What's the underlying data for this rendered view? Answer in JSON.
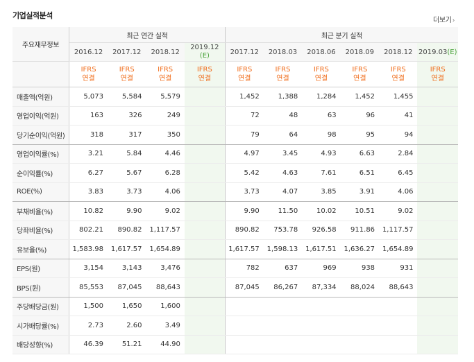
{
  "section_title": "기업실적분석",
  "more_link": "더보기",
  "header": {
    "row_label": "주요재무정보",
    "annual_group": "최근 연간 실적",
    "quarter_group": "최근 분기 실적",
    "annual_periods": [
      "2016.12",
      "2017.12",
      "2018.12"
    ],
    "annual_estimate": {
      "date": "2019.12",
      "tag": "(E)"
    },
    "quarter_periods": [
      "2017.12",
      "2018.03",
      "2018.06",
      "2018.09",
      "2018.12"
    ],
    "quarter_estimate": {
      "date": "2019.03",
      "tag": "(E)"
    },
    "ifrs_line1": "IFRS",
    "ifrs_line2": "연결"
  },
  "rows": [
    {
      "label": "매출액(억원)",
      "annual": [
        "5,073",
        "5,584",
        "5,579"
      ],
      "annual_est": "",
      "quarter": [
        "1,452",
        "1,388",
        "1,284",
        "1,452",
        "1,455"
      ],
      "quarter_est": ""
    },
    {
      "label": "영업이익(억원)",
      "annual": [
        "163",
        "326",
        "249"
      ],
      "annual_est": "",
      "quarter": [
        "72",
        "48",
        "63",
        "96",
        "41"
      ],
      "quarter_est": ""
    },
    {
      "label": "당기순이익(억원)",
      "annual": [
        "318",
        "317",
        "350"
      ],
      "annual_est": "",
      "quarter": [
        "79",
        "64",
        "98",
        "95",
        "94"
      ],
      "quarter_est": ""
    },
    {
      "label": "영업이익률(%)",
      "annual": [
        "3.21",
        "5.84",
        "4.46"
      ],
      "annual_est": "",
      "quarter": [
        "4.97",
        "3.45",
        "4.93",
        "6.63",
        "2.84"
      ],
      "quarter_est": ""
    },
    {
      "label": "순이익률(%)",
      "annual": [
        "6.27",
        "5.67",
        "6.28"
      ],
      "annual_est": "",
      "quarter": [
        "5.42",
        "4.63",
        "7.61",
        "6.51",
        "6.45"
      ],
      "quarter_est": ""
    },
    {
      "label": "ROE(%)",
      "annual": [
        "3.83",
        "3.73",
        "4.06"
      ],
      "annual_est": "",
      "quarter": [
        "3.73",
        "4.07",
        "3.85",
        "3.91",
        "4.06"
      ],
      "quarter_est": ""
    },
    {
      "label": "부채비율(%)",
      "annual": [
        "10.82",
        "9.90",
        "9.02"
      ],
      "annual_est": "",
      "quarter": [
        "9.90",
        "11.50",
        "10.02",
        "10.51",
        "9.02"
      ],
      "quarter_est": ""
    },
    {
      "label": "당좌비율(%)",
      "annual": [
        "802.21",
        "890.82",
        "1,117.57"
      ],
      "annual_est": "",
      "quarter": [
        "890.82",
        "753.78",
        "926.58",
        "911.86",
        "1,117.57"
      ],
      "quarter_est": ""
    },
    {
      "label": "유보율(%)",
      "annual": [
        "1,583.98",
        "1,617.57",
        "1,654.89"
      ],
      "annual_est": "",
      "quarter": [
        "1,617.57",
        "1,598.13",
        "1,617.51",
        "1,636.27",
        "1,654.89"
      ],
      "quarter_est": ""
    },
    {
      "label": "EPS(원)",
      "annual": [
        "3,154",
        "3,143",
        "3,476"
      ],
      "annual_est": "",
      "quarter": [
        "782",
        "637",
        "969",
        "938",
        "931"
      ],
      "quarter_est": ""
    },
    {
      "label": "BPS(원)",
      "annual": [
        "85,553",
        "87,045",
        "88,643"
      ],
      "annual_est": "",
      "quarter": [
        "87,045",
        "86,267",
        "87,334",
        "88,024",
        "88,643"
      ],
      "quarter_est": ""
    },
    {
      "label": "주당배당금(원)",
      "annual": [
        "1,500",
        "1,650",
        "1,600"
      ],
      "annual_est": "",
      "quarter": [
        "",
        "",
        "",
        "",
        ""
      ],
      "quarter_est": ""
    },
    {
      "label": "시가배당률(%)",
      "annual": [
        "2.73",
        "2.60",
        "3.49"
      ],
      "annual_est": "",
      "quarter": [
        "",
        "",
        "",
        "",
        ""
      ],
      "quarter_est": ""
    },
    {
      "label": "배당성향(%)",
      "annual": [
        "46.39",
        "51.21",
        "44.90"
      ],
      "annual_est": "",
      "quarter": [
        "",
        "",
        "",
        "",
        ""
      ],
      "quarter_est": ""
    }
  ]
}
